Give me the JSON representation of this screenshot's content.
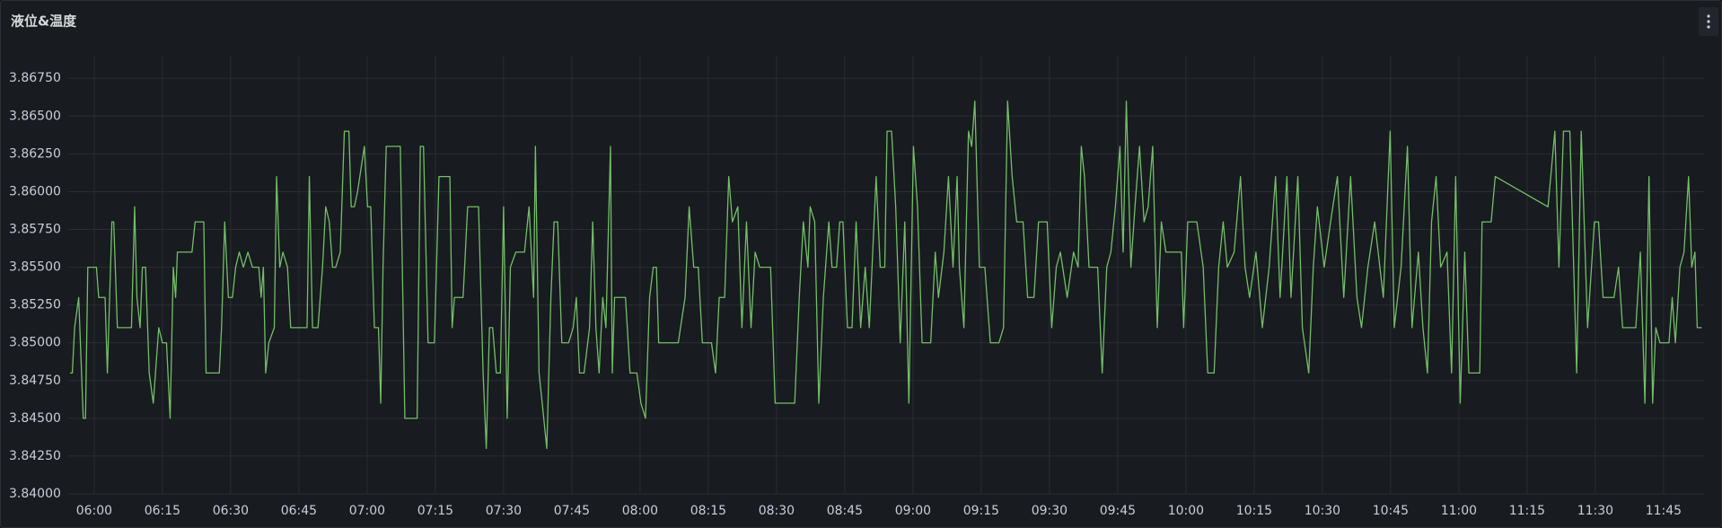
{
  "chart_data": {
    "type": "line",
    "title": "液位&温度",
    "color": "#73bf69",
    "grid": true,
    "xlim": [
      354.3,
      713.9
    ],
    "xticks": [
      {
        "value": 360,
        "label": "06:00"
      },
      {
        "value": 375,
        "label": "06:15"
      },
      {
        "value": 390,
        "label": "06:30"
      },
      {
        "value": 405,
        "label": "06:45"
      },
      {
        "value": 420,
        "label": "07:00"
      },
      {
        "value": 435,
        "label": "07:15"
      },
      {
        "value": 450,
        "label": "07:30"
      },
      {
        "value": 465,
        "label": "07:45"
      },
      {
        "value": 480,
        "label": "08:00"
      },
      {
        "value": 495,
        "label": "08:15"
      },
      {
        "value": 510,
        "label": "08:30"
      },
      {
        "value": 525,
        "label": "08:45"
      },
      {
        "value": 540,
        "label": "09:00"
      },
      {
        "value": 555,
        "label": "09:15"
      },
      {
        "value": 570,
        "label": "09:30"
      },
      {
        "value": 585,
        "label": "09:45"
      },
      {
        "value": 600,
        "label": "10:00"
      },
      {
        "value": 615,
        "label": "10:15"
      },
      {
        "value": 630,
        "label": "10:30"
      },
      {
        "value": 645,
        "label": "10:45"
      },
      {
        "value": 660,
        "label": "11:00"
      },
      {
        "value": 675,
        "label": "11:15"
      },
      {
        "value": 690,
        "label": "11:30"
      },
      {
        "value": 705,
        "label": "11:45"
      }
    ],
    "ylim": [
      3.84,
      3.869
    ],
    "yticks": [
      {
        "value": 3.84,
        "label": "3.84000"
      },
      {
        "value": 3.8425,
        "label": "3.84250"
      },
      {
        "value": 3.845,
        "label": "3.84500"
      },
      {
        "value": 3.8475,
        "label": "3.84750"
      },
      {
        "value": 3.85,
        "label": "3.85000"
      },
      {
        "value": 3.8525,
        "label": "3.85250"
      },
      {
        "value": 3.855,
        "label": "3.85500"
      },
      {
        "value": 3.8575,
        "label": "3.85750"
      },
      {
        "value": 3.86,
        "label": "3.86000"
      },
      {
        "value": 3.8625,
        "label": "3.86250"
      },
      {
        "value": 3.865,
        "label": "3.86500"
      },
      {
        "value": 3.8675,
        "label": "3.86750"
      }
    ],
    "x": [
      354.7,
      355.2,
      355.7,
      356.6,
      357.6,
      358.1,
      358.6,
      360.5,
      361.0,
      362.4,
      362.9,
      363.9,
      364.3,
      365.1,
      368.2,
      368.9,
      369.4,
      370.1,
      370.6,
      371.3,
      372.1,
      373.0,
      374.2,
      375.0,
      375.9,
      376.7,
      377.4,
      377.9,
      378.3,
      381.5,
      382.2,
      384.1,
      384.6,
      387.5,
      388.0,
      388.7,
      389.5,
      390.4,
      391.1,
      391.9,
      392.8,
      393.8,
      394.8,
      396.2,
      396.7,
      397.2,
      397.7,
      398.4,
      399.6,
      400.1,
      400.8,
      401.5,
      402.5,
      403.2,
      404.4,
      406.8,
      407.3,
      408.0,
      409.2,
      410.2,
      410.9,
      411.7,
      412.4,
      413.1,
      414.1,
      415.0,
      416.0,
      416.5,
      417.2,
      417.9,
      419.4,
      420.1,
      420.8,
      421.6,
      422.5,
      423.0,
      423.5,
      424.2,
      427.3,
      428.3,
      431.0,
      431.7,
      432.4,
      433.4,
      434.8,
      435.8,
      438.2,
      438.7,
      439.2,
      441.1,
      442.1,
      444.5,
      445.5,
      446.2,
      446.9,
      447.6,
      448.4,
      449.3,
      450.0,
      450.8,
      451.5,
      452.7,
      454.6,
      455.6,
      456.6,
      457.0,
      457.8,
      458.5,
      459.5,
      460.4,
      461.1,
      461.9,
      462.8,
      464.3,
      465.3,
      466.0,
      466.7,
      467.7,
      468.9,
      469.6,
      470.3,
      471.0,
      471.8,
      472.5,
      473.5,
      473.9,
      474.4,
      476.8,
      477.8,
      479.3,
      480.2,
      481.2,
      482.1,
      482.9,
      483.6,
      484.1,
      488.4,
      488.9,
      489.9,
      490.8,
      491.8,
      492.8,
      493.7,
      495.7,
      496.6,
      497.4,
      498.6,
      499.5,
      500.3,
      501.5,
      502.4,
      503.4,
      504.4,
      505.3,
      506.3,
      508.7,
      509.7,
      514.0,
      515.0,
      515.9,
      516.9,
      517.4,
      518.4,
      519.3,
      520.3,
      521.5,
      522.2,
      523.2,
      523.9,
      524.6,
      525.6,
      526.6,
      527.5,
      528.5,
      529.5,
      530.4,
      531.9,
      532.8,
      533.8,
      534.3,
      535.3,
      536.2,
      537.2,
      538.2,
      539.1,
      540.1,
      541.0,
      542.0,
      543.9,
      544.9,
      545.6,
      546.8,
      547.8,
      548.8,
      549.7,
      550.2,
      551.2,
      552.2,
      552.9,
      553.6,
      554.6,
      555.8,
      557.0,
      558.9,
      559.9,
      560.8,
      561.8,
      562.8,
      564.2,
      565.2,
      566.6,
      567.6,
      569.5,
      570.5,
      571.5,
      572.4,
      573.9,
      575.3,
      576.3,
      577.0,
      577.7,
      578.7,
      580.6,
      581.6,
      582.6,
      583.5,
      584.5,
      585.5,
      586.2,
      586.9,
      587.9,
      588.8,
      589.8,
      590.8,
      591.7,
      592.7,
      593.7,
      594.6,
      595.6,
      599.0,
      599.5,
      600.4,
      602.4,
      603.8,
      604.8,
      606.2,
      607.2,
      608.2,
      609.1,
      610.6,
      612.0,
      613.0,
      614.0,
      615.4,
      616.8,
      618.3,
      619.7,
      620.7,
      622.2,
      623.1,
      624.6,
      625.6,
      627.0,
      628.0,
      628.9,
      630.4,
      631.8,
      633.3,
      634.7,
      636.2,
      637.6,
      638.6,
      640.0,
      641.5,
      643.4,
      644.9,
      645.8,
      647.3,
      648.7,
      649.7,
      651.1,
      652.1,
      653.1,
      654.0,
      655.0,
      656.0,
      657.4,
      658.4,
      659.3,
      660.3,
      661.3,
      662.2,
      664.6,
      665.1,
      667.1,
      668.0,
      679.6,
      681.1,
      682.0,
      683.0,
      684.4,
      685.9,
      686.9,
      688.3,
      689.8,
      690.7,
      691.7,
      694.1,
      695.1,
      696.0,
      698.9,
      699.9,
      700.9,
      701.8,
      702.6,
      703.3,
      704.2,
      706.2,
      706.9,
      707.6,
      708.6,
      709.5,
      710.5,
      711.2,
      711.9,
      712.4,
      713.4
    ],
    "values": [
      3.848,
      3.848,
      3.851,
      3.853,
      3.845,
      3.845,
      3.855,
      3.855,
      3.853,
      3.853,
      3.848,
      3.858,
      3.858,
      3.851,
      3.851,
      3.859,
      3.853,
      3.851,
      3.855,
      3.855,
      3.848,
      3.846,
      3.851,
      3.85,
      3.85,
      3.845,
      3.855,
      3.853,
      3.856,
      3.856,
      3.858,
      3.858,
      3.848,
      3.848,
      3.851,
      3.858,
      3.853,
      3.853,
      3.855,
      3.856,
      3.855,
      3.856,
      3.855,
      3.855,
      3.853,
      3.855,
      3.848,
      3.85,
      3.851,
      3.861,
      3.855,
      3.856,
      3.855,
      3.851,
      3.851,
      3.851,
      3.861,
      3.851,
      3.851,
      3.855,
      3.859,
      3.858,
      3.855,
      3.855,
      3.856,
      3.864,
      3.864,
      3.859,
      3.859,
      3.86,
      3.863,
      3.859,
      3.859,
      3.851,
      3.851,
      3.846,
      3.855,
      3.863,
      3.863,
      3.845,
      3.845,
      3.863,
      3.863,
      3.85,
      3.85,
      3.861,
      3.861,
      3.851,
      3.853,
      3.853,
      3.859,
      3.859,
      3.848,
      3.843,
      3.851,
      3.851,
      3.848,
      3.848,
      3.859,
      3.845,
      3.855,
      3.856,
      3.856,
      3.859,
      3.853,
      3.863,
      3.848,
      3.846,
      3.843,
      3.853,
      3.858,
      3.858,
      3.85,
      3.85,
      3.851,
      3.853,
      3.848,
      3.848,
      3.851,
      3.858,
      3.851,
      3.848,
      3.853,
      3.851,
      3.863,
      3.848,
      3.853,
      3.853,
      3.848,
      3.848,
      3.846,
      3.845,
      3.853,
      3.855,
      3.855,
      3.85,
      3.85,
      3.851,
      3.853,
      3.859,
      3.855,
      3.855,
      3.85,
      3.85,
      3.848,
      3.853,
      3.853,
      3.861,
      3.858,
      3.859,
      3.851,
      3.858,
      3.851,
      3.856,
      3.855,
      3.855,
      3.846,
      3.846,
      3.853,
      3.858,
      3.855,
      3.859,
      3.858,
      3.846,
      3.853,
      3.858,
      3.855,
      3.855,
      3.858,
      3.858,
      3.851,
      3.851,
      3.858,
      3.851,
      3.855,
      3.851,
      3.861,
      3.855,
      3.855,
      3.864,
      3.864,
      3.859,
      3.85,
      3.858,
      3.846,
      3.863,
      3.859,
      3.85,
      3.85,
      3.856,
      3.853,
      3.856,
      3.861,
      3.855,
      3.861,
      3.855,
      3.851,
      3.864,
      3.863,
      3.866,
      3.855,
      3.855,
      3.85,
      3.85,
      3.851,
      3.866,
      3.861,
      3.858,
      3.858,
      3.853,
      3.853,
      3.858,
      3.858,
      3.851,
      3.855,
      3.856,
      3.853,
      3.856,
      3.855,
      3.863,
      3.861,
      3.855,
      3.855,
      3.848,
      3.855,
      3.856,
      3.859,
      3.863,
      3.856,
      3.866,
      3.855,
      3.859,
      3.863,
      3.858,
      3.859,
      3.863,
      3.851,
      3.858,
      3.856,
      3.856,
      3.851,
      3.858,
      3.858,
      3.855,
      3.848,
      3.848,
      3.855,
      3.858,
      3.855,
      3.856,
      3.861,
      3.855,
      3.853,
      3.856,
      3.851,
      3.855,
      3.861,
      3.853,
      3.861,
      3.853,
      3.861,
      3.851,
      3.848,
      3.855,
      3.859,
      3.855,
      3.858,
      3.861,
      3.853,
      3.861,
      3.853,
      3.851,
      3.855,
      3.858,
      3.853,
      3.864,
      3.851,
      3.855,
      3.863,
      3.851,
      3.856,
      3.851,
      3.848,
      3.858,
      3.861,
      3.855,
      3.856,
      3.848,
      3.861,
      3.846,
      3.856,
      3.848,
      3.848,
      3.858,
      3.858,
      3.861,
      3.859,
      3.864,
      3.855,
      3.864,
      3.864,
      3.848,
      3.864,
      3.851,
      3.858,
      3.858,
      3.853,
      3.853,
      3.855,
      3.851,
      3.851,
      3.856,
      3.846,
      3.861,
      3.846,
      3.851,
      3.85,
      3.85,
      3.853,
      3.85,
      3.855,
      3.856,
      3.861,
      3.855,
      3.856,
      3.851,
      3.851
    ]
  }
}
